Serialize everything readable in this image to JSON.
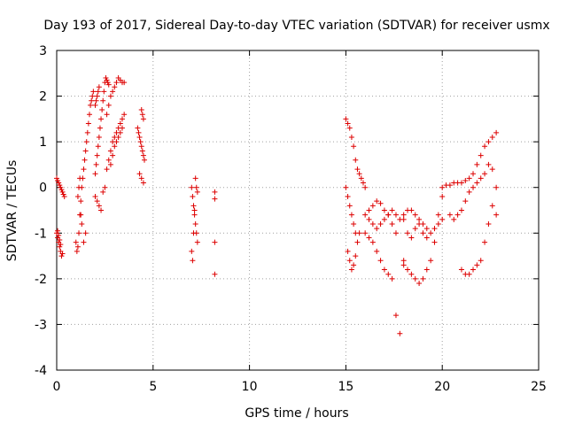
{
  "chart_data": {
    "type": "scatter",
    "title": "Day 193 of 2017, Sidereal Day-to-day VTEC variation (SDTVAR) for receiver usmx",
    "xlabel": "GPS time / hours",
    "ylabel": "SDTVAR / TECUs",
    "xlim": [
      0,
      25
    ],
    "ylim": [
      -4,
      3
    ],
    "xticks": [
      0,
      5,
      10,
      15,
      20,
      25
    ],
    "yticks": [
      -4,
      -3,
      -2,
      -1,
      0,
      1,
      2,
      3
    ],
    "grid": true,
    "marker": "+",
    "color": "#dd0000",
    "series": [
      {
        "name": "seg_00_0.5",
        "x": [
          0.0,
          0.05,
          0.1,
          0.15,
          0.2,
          0.25,
          0.3,
          0.35,
          0.4,
          0.0,
          0.05,
          0.1,
          0.15,
          0.2,
          0.25,
          0.3,
          0.05,
          0.1,
          0.15,
          0.2
        ],
        "y": [
          0.2,
          0.15,
          0.1,
          0.05,
          0.0,
          -0.05,
          -0.1,
          -0.15,
          -0.2,
          -1.0,
          -1.1,
          -1.2,
          -1.3,
          -1.4,
          -1.5,
          -1.45,
          -0.95,
          -1.05,
          -1.15,
          -1.25
        ]
      },
      {
        "name": "seg_1_2",
        "x": [
          1.0,
          1.05,
          1.1,
          1.15,
          1.2,
          1.25,
          1.3,
          1.35,
          1.4,
          1.45,
          1.5,
          1.55,
          1.6,
          1.65,
          1.7,
          1.75,
          1.8,
          1.85,
          1.9,
          1.1,
          1.15,
          1.2,
          1.25,
          1.3,
          1.4,
          1.5
        ],
        "y": [
          -1.2,
          -1.4,
          -1.3,
          -1.0,
          -0.6,
          -0.3,
          0.0,
          0.2,
          0.4,
          0.6,
          0.8,
          1.0,
          1.2,
          1.4,
          1.6,
          1.8,
          1.9,
          2.0,
          2.1,
          -0.2,
          0.0,
          0.2,
          -0.6,
          -0.8,
          -1.2,
          -1.0
        ]
      },
      {
        "name": "seg_2_2.5",
        "x": [
          2.0,
          2.05,
          2.1,
          2.15,
          2.2,
          2.25,
          2.3,
          2.35,
          2.4,
          2.45,
          2.5,
          2.55,
          2.6,
          2.65,
          2.7,
          2.0,
          2.1,
          2.2,
          2.3,
          2.4,
          2.5,
          2.0,
          2.05,
          2.1,
          2.15,
          2.2
        ],
        "y": [
          0.3,
          0.5,
          0.7,
          0.9,
          1.1,
          1.3,
          1.5,
          1.7,
          1.9,
          2.1,
          2.3,
          2.4,
          2.35,
          2.3,
          2.25,
          -0.2,
          -0.3,
          -0.4,
          -0.5,
          -0.1,
          0.0,
          1.8,
          1.9,
          2.0,
          2.1,
          2.2
        ]
      },
      {
        "name": "seg_2.5_3.5",
        "x": [
          2.6,
          2.7,
          2.8,
          2.9,
          3.0,
          3.1,
          3.2,
          3.3,
          3.4,
          3.5,
          2.6,
          2.7,
          2.8,
          2.9,
          3.0,
          3.1,
          3.2,
          3.3,
          3.4,
          3.5,
          2.8,
          2.9,
          3.0,
          3.1,
          3.2,
          3.3,
          3.4
        ],
        "y": [
          0.4,
          0.6,
          0.8,
          1.0,
          1.1,
          1.2,
          1.3,
          1.4,
          1.5,
          1.6,
          1.6,
          1.8,
          2.0,
          2.1,
          2.2,
          2.3,
          2.4,
          2.35,
          2.3,
          2.3,
          0.5,
          0.7,
          0.9,
          1.0,
          1.1,
          1.2,
          1.3
        ]
      },
      {
        "name": "seg_4_4.5",
        "x": [
          4.2,
          4.25,
          4.3,
          4.35,
          4.4,
          4.45,
          4.5,
          4.55,
          4.3,
          4.4,
          4.5,
          4.4,
          4.45,
          4.5
        ],
        "y": [
          1.3,
          1.2,
          1.1,
          1.0,
          0.9,
          0.8,
          0.7,
          0.6,
          0.3,
          0.2,
          0.1,
          1.7,
          1.6,
          1.5
        ]
      },
      {
        "name": "seg_7_8.5",
        "x": [
          7.0,
          7.05,
          7.1,
          7.15,
          7.2,
          7.25,
          7.3,
          7.0,
          7.05,
          7.1,
          7.15,
          7.2,
          7.25,
          7.3,
          8.2,
          8.2,
          8.2,
          8.2
        ],
        "y": [
          0.0,
          -0.2,
          -0.4,
          -0.6,
          -0.8,
          -1.0,
          -1.2,
          -1.4,
          -1.6,
          -1.0,
          -0.5,
          0.2,
          0.0,
          -0.1,
          -0.1,
          -0.25,
          -1.2,
          -1.9
        ]
      },
      {
        "name": "seg_15_16",
        "x": [
          15.0,
          15.1,
          15.2,
          15.3,
          15.4,
          15.5,
          15.6,
          15.7,
          15.8,
          15.9,
          16.0,
          15.0,
          15.1,
          15.2,
          15.3,
          15.4,
          15.5,
          15.6,
          15.7,
          15.1,
          15.2,
          15.3,
          15.4,
          15.5
        ],
        "y": [
          1.5,
          1.4,
          1.3,
          1.1,
          0.9,
          0.6,
          0.4,
          0.3,
          0.2,
          0.1,
          0.0,
          0.0,
          -0.2,
          -0.4,
          -0.6,
          -0.8,
          -1.0,
          -1.2,
          -1.0,
          -1.4,
          -1.6,
          -1.8,
          -1.7,
          -1.5
        ]
      },
      {
        "name": "seg_16_18",
        "x": [
          16.0,
          16.2,
          16.4,
          16.6,
          16.8,
          17.0,
          17.2,
          17.4,
          17.6,
          17.8,
          18.0,
          16.0,
          16.2,
          16.4,
          16.6,
          16.8,
          17.0,
          17.2,
          17.4,
          17.6,
          17.8,
          18.0,
          16.2,
          16.4,
          16.6,
          16.8,
          17.0,
          17.2,
          17.4,
          17.6
        ],
        "y": [
          -0.6,
          -0.7,
          -0.8,
          -0.9,
          -0.8,
          -0.7,
          -0.6,
          -0.5,
          -0.6,
          -0.7,
          -0.7,
          -1.0,
          -1.1,
          -1.2,
          -1.4,
          -1.6,
          -1.8,
          -1.9,
          -2.0,
          -2.8,
          -3.2,
          -1.6,
          -0.5,
          -0.4,
          -0.3,
          -0.35,
          -0.5,
          -0.6,
          -0.8,
          -1.0
        ]
      },
      {
        "name": "seg_18_20",
        "x": [
          18.0,
          18.2,
          18.4,
          18.6,
          18.8,
          19.0,
          19.2,
          19.4,
          19.6,
          19.8,
          20.0,
          18.0,
          18.2,
          18.4,
          18.6,
          18.8,
          19.0,
          19.2,
          19.4,
          19.6,
          19.8,
          20.0,
          18.2,
          18.4,
          18.6,
          18.8,
          19.0,
          19.2
        ],
        "y": [
          -0.6,
          -0.5,
          -0.5,
          -0.6,
          -0.7,
          -0.8,
          -0.9,
          -1.0,
          -0.9,
          -0.8,
          -0.7,
          -1.7,
          -1.8,
          -1.9,
          -2.0,
          -2.1,
          -2.0,
          -1.8,
          -1.6,
          -1.2,
          -0.6,
          -0.2,
          -1.0,
          -1.1,
          -0.9,
          -0.8,
          -1.0,
          -1.1
        ]
      },
      {
        "name": "seg_20_23",
        "x": [
          20.0,
          20.2,
          20.4,
          20.6,
          20.8,
          21.0,
          21.2,
          21.4,
          21.6,
          21.8,
          22.0,
          22.2,
          22.4,
          22.6,
          22.8,
          20.4,
          20.6,
          20.8,
          21.0,
          21.2,
          21.4,
          21.6,
          21.8,
          22.0,
          22.2,
          22.4,
          22.6,
          22.8,
          21.0,
          21.2,
          21.4,
          21.6,
          21.8,
          22.0,
          22.2,
          22.4,
          22.6,
          22.8
        ],
        "y": [
          0.0,
          0.05,
          0.05,
          0.1,
          0.1,
          0.1,
          0.15,
          0.2,
          0.3,
          0.5,
          0.7,
          0.9,
          1.0,
          1.1,
          1.2,
          -0.6,
          -0.7,
          -0.6,
          -0.5,
          -0.3,
          -0.1,
          0.0,
          0.1,
          0.2,
          0.3,
          0.5,
          0.4,
          0.0,
          -1.8,
          -1.9,
          -1.9,
          -1.8,
          -1.7,
          -1.6,
          -1.2,
          -0.8,
          -0.4,
          -0.6
        ]
      }
    ]
  }
}
